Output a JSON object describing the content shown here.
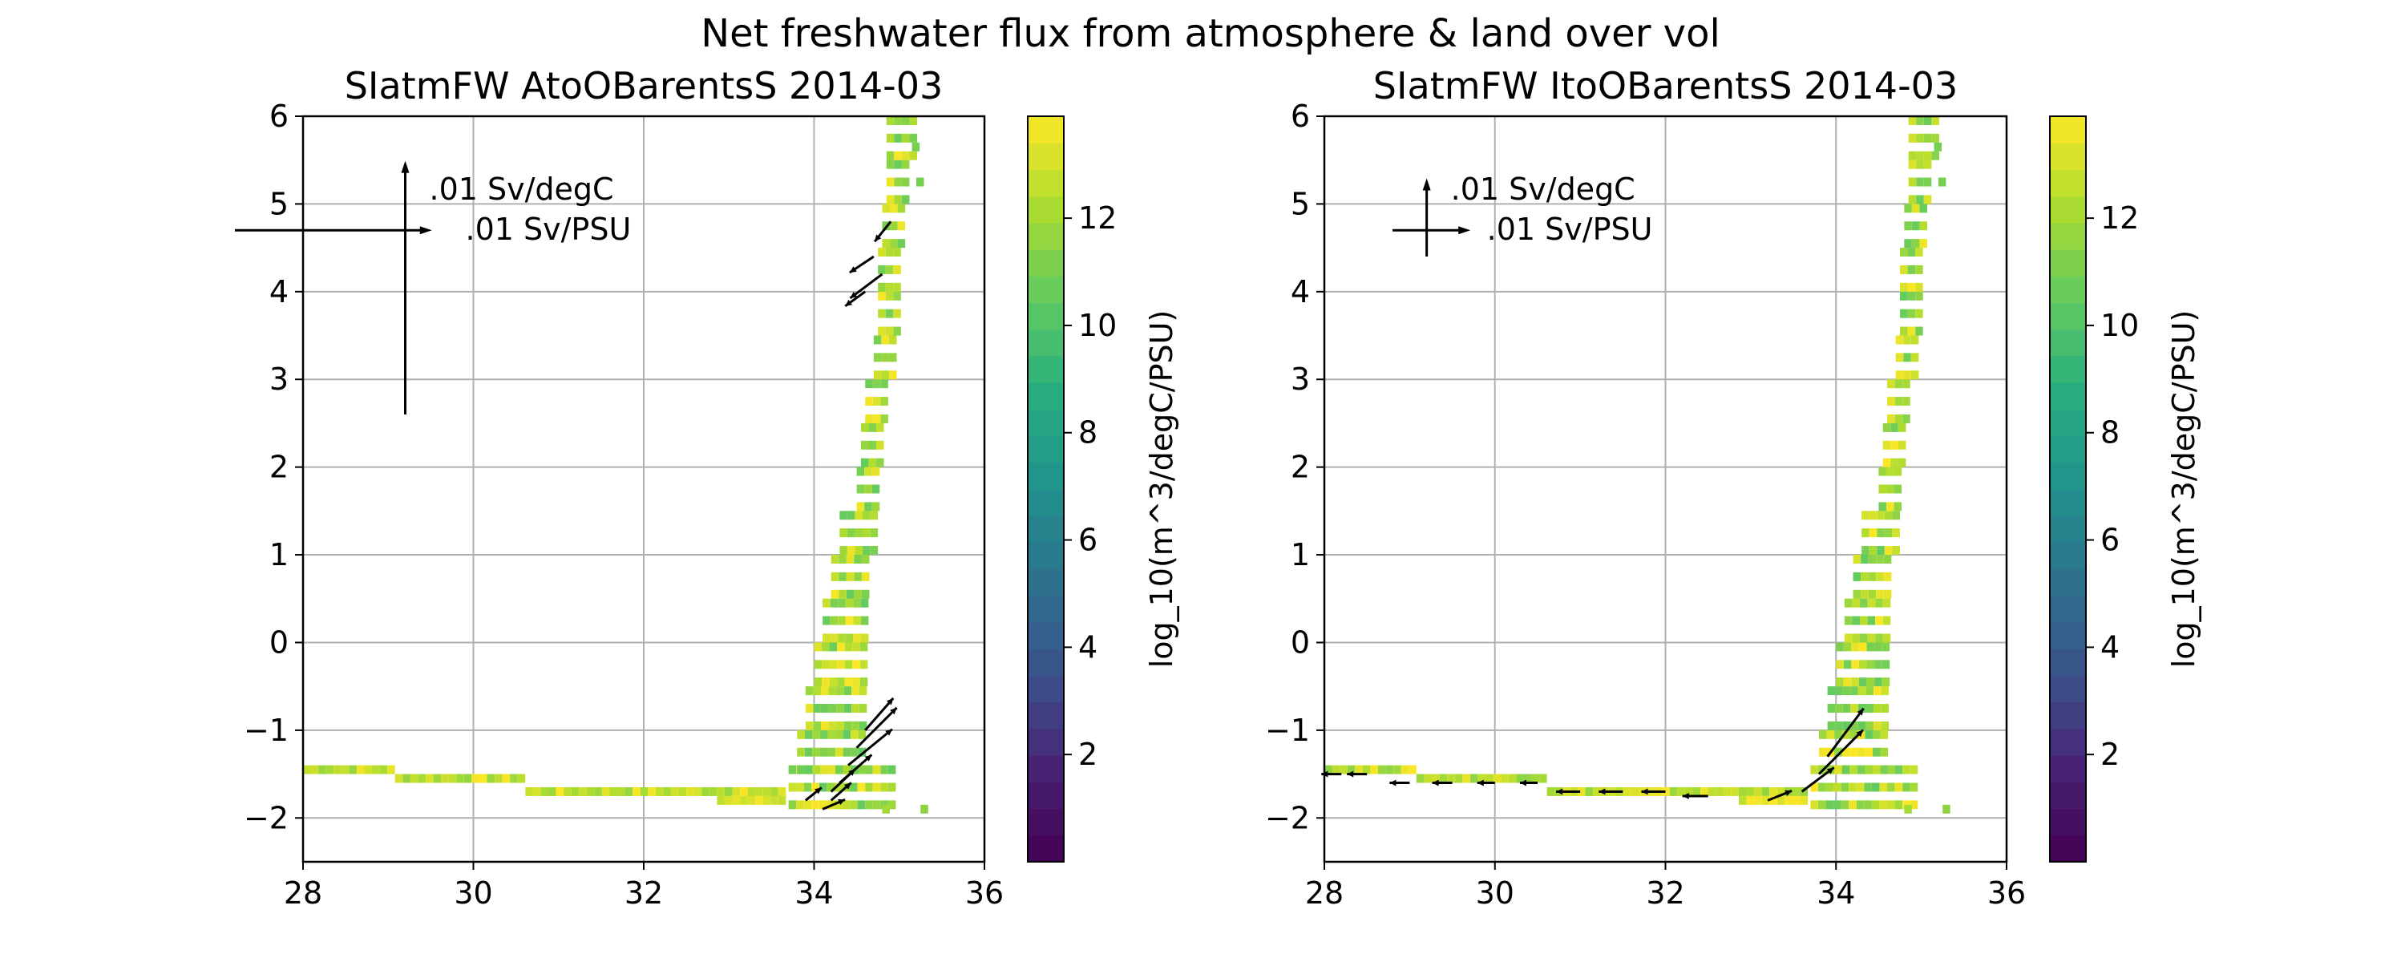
{
  "figure": {
    "suptitle": "Net freshwater flux from atmosphere & land over vol"
  },
  "chart_data": [
    {
      "type": "heatmap",
      "title": "SIatmFW AtoOBarentsS 2014-03",
      "xlim": [
        28,
        36
      ],
      "ylim": [
        -2.5,
        6
      ],
      "xticks": [
        "28",
        "30",
        "32",
        "34",
        "36"
      ],
      "yticks": [
        "−2",
        "−1",
        "0",
        "1",
        "2",
        "3",
        "4",
        "5",
        "6"
      ],
      "grid": true,
      "colorbar": {
        "label": "log_10(m^3/degC/PSU)",
        "range": [
          0,
          13.9
        ],
        "ticks": [
          "2",
          "4",
          "6",
          "8",
          "10",
          "12"
        ],
        "colormap": "viridis"
      },
      "quiver_key": {
        "vertical_label": ".01 Sv/degC",
        "horizontal_label": ".01 Sv/PSU",
        "origin": [
          29.2,
          4.7
        ],
        "vertical_extent": [
          2.6,
          5.4
        ],
        "horizontal_extent": [
          27.2,
          29.4
        ]
      }
    },
    {
      "type": "heatmap",
      "title": "SIatmFW ItoOBarentsS 2014-03",
      "xlim": [
        28,
        36
      ],
      "ylim": [
        -2.5,
        6
      ],
      "xticks": [
        "28",
        "30",
        "32",
        "34",
        "36"
      ],
      "yticks": [
        "−2",
        "−1",
        "0",
        "1",
        "2",
        "3",
        "4",
        "5",
        "6"
      ],
      "grid": true,
      "colorbar": {
        "label": "log_10(m^3/degC/PSU)",
        "range": [
          0,
          13.9
        ],
        "ticks": [
          "2",
          "4",
          "6",
          "8",
          "10",
          "12"
        ],
        "colormap": "viridis"
      },
      "quiver_key": {
        "vertical_label": ".01 Sv/degC",
        "horizontal_label": ".01 Sv/PSU",
        "origin": [
          29.2,
          4.7
        ],
        "vertical_extent": [
          4.4,
          5.2
        ],
        "horizontal_extent": [
          28.8,
          29.6
        ]
      }
    }
  ]
}
